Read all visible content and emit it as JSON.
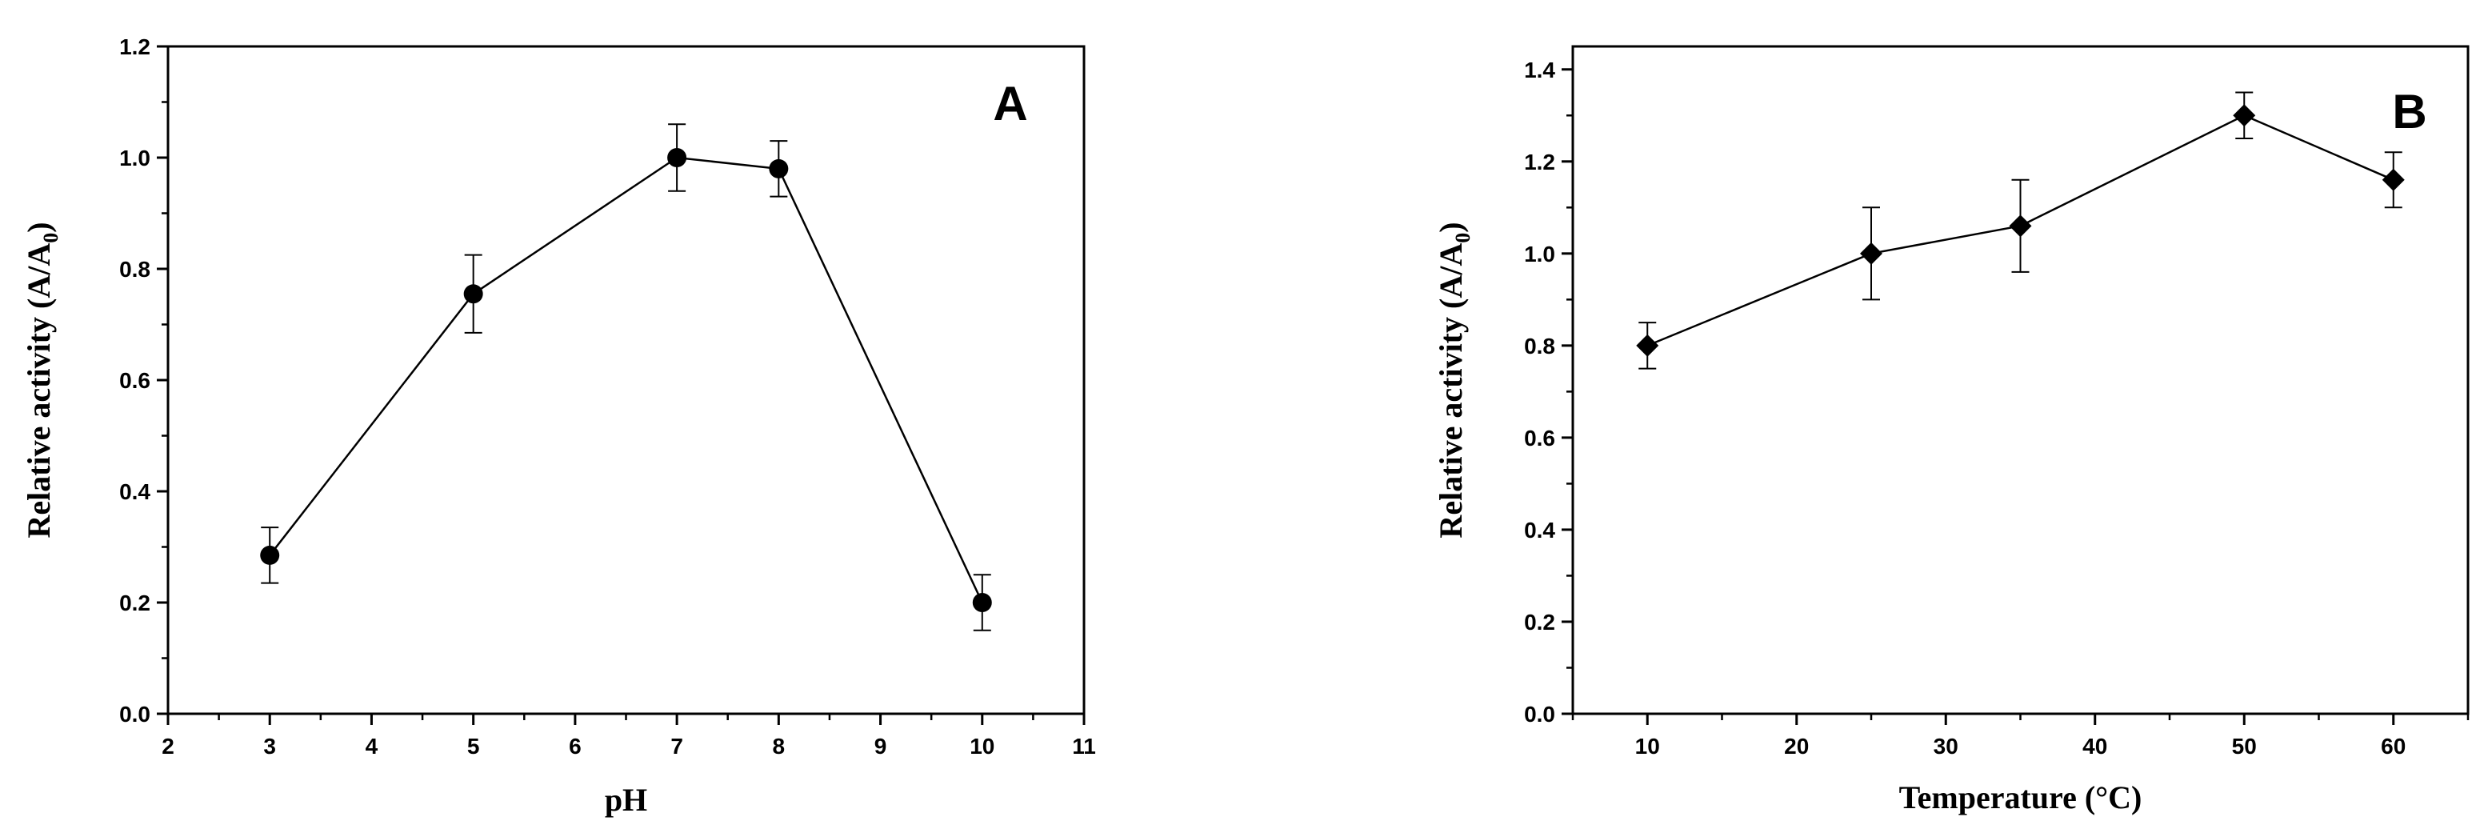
{
  "chart_data": [
    {
      "type": "line",
      "panel_label": "A",
      "xlabel": "pH",
      "ylabel": "Relative activity (A/A",
      "ylabel_subscript": "0",
      "ylabel_suffix": ")",
      "xlim": [
        2,
        11
      ],
      "ylim": [
        0,
        1.2
      ],
      "xticks": [
        2,
        3,
        4,
        5,
        6,
        7,
        8,
        9,
        10,
        11
      ],
      "yticks": [
        0.0,
        0.2,
        0.4,
        0.6,
        0.8,
        1.0,
        1.2
      ],
      "xtick_labels": [
        "2",
        "3",
        "4",
        "5",
        "6",
        "7",
        "8",
        "9",
        "10",
        "11"
      ],
      "ytick_labels": [
        "0.0",
        "0.2",
        "0.4",
        "0.6",
        "0.8",
        "1.0",
        "1.2"
      ],
      "marker": "circle",
      "grid": false,
      "x": [
        3,
        5,
        7,
        8,
        10
      ],
      "y": [
        0.285,
        0.755,
        1.0,
        0.98,
        0.2
      ],
      "error": [
        0.05,
        0.07,
        0.06,
        0.05,
        0.05
      ]
    },
    {
      "type": "line",
      "panel_label": "B",
      "xlabel": "Temperature (°C)",
      "ylabel": "Relative activity (A/A",
      "ylabel_subscript": "0",
      "ylabel_suffix": ")",
      "xlim": [
        5,
        65
      ],
      "ylim": [
        0,
        1.45
      ],
      "xticks": [
        10,
        20,
        30,
        40,
        50,
        60
      ],
      "yticks": [
        0.0,
        0.2,
        0.4,
        0.6,
        0.8,
        1.0,
        1.2,
        1.4
      ],
      "xtick_labels": [
        "10",
        "20",
        "30",
        "40",
        "50",
        "60"
      ],
      "ytick_labels": [
        "0.0",
        "0.2",
        "0.4",
        "0.6",
        "0.8",
        "1.0",
        "1.2",
        "1.4"
      ],
      "marker": "diamond",
      "grid": false,
      "x": [
        10,
        25,
        35,
        50,
        60
      ],
      "y": [
        0.8,
        1.0,
        1.06,
        1.3,
        1.16
      ],
      "error": [
        0.05,
        0.1,
        0.1,
        0.05,
        0.06
      ]
    }
  ]
}
